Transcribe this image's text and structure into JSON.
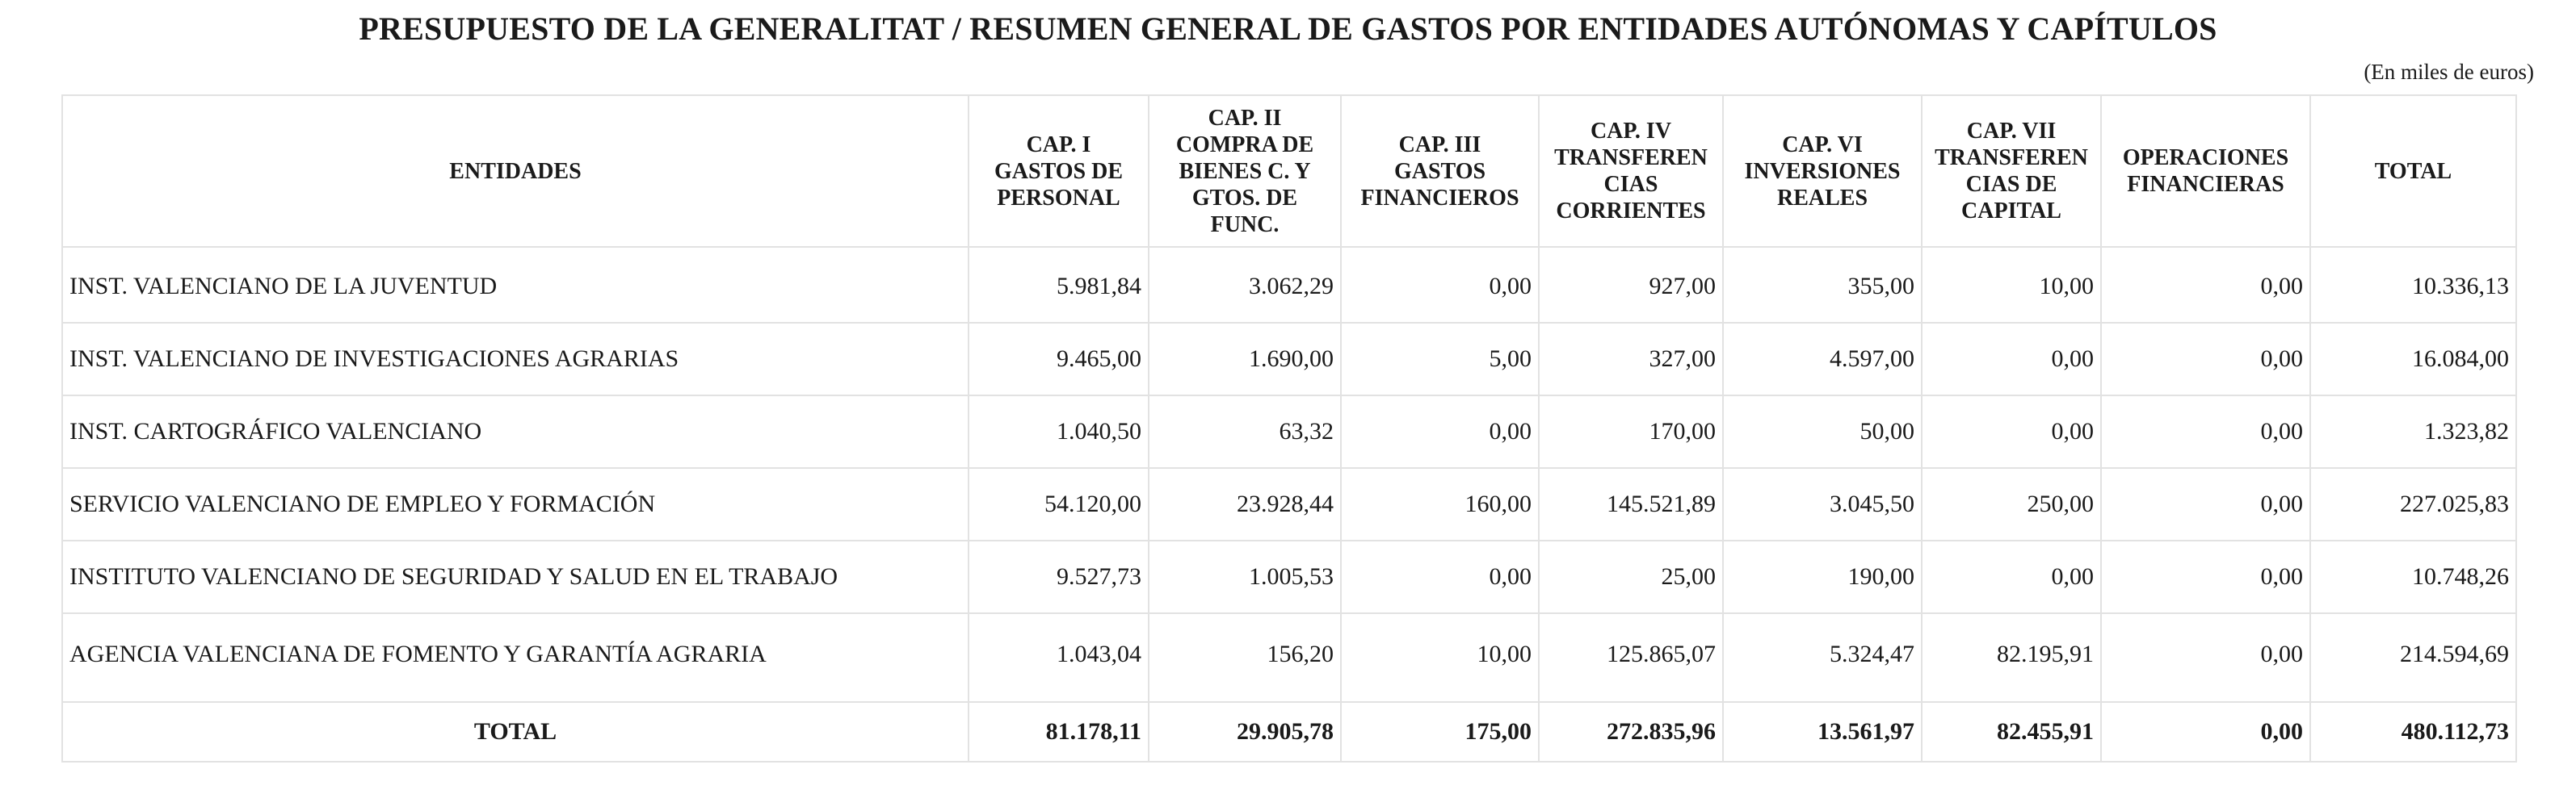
{
  "document": {
    "title": "PRESUPUESTO DE LA GENERALITAT / RESUMEN GENERAL DE GASTOS POR ENTIDADES AUTÓNOMAS Y CAPÍTULOS",
    "units": "(En miles de euros)"
  },
  "table": {
    "headers": {
      "entidades": "ENTIDADES",
      "cap1": [
        "CAP. I",
        "GASTOS DE",
        "PERSONAL"
      ],
      "cap2": [
        "CAP. II",
        "COMPRA DE",
        "BIENES C. Y",
        "GTOS. DE",
        "FUNC."
      ],
      "cap3": [
        "CAP. III",
        "GASTOS",
        "FINANCIEROS"
      ],
      "cap4": [
        "CAP. IV",
        "TRANSFEREN",
        "CIAS",
        "CORRIENTES"
      ],
      "cap6": [
        "CAP. VI",
        "INVERSIONES",
        "REALES"
      ],
      "cap7": [
        "CAP. VII",
        "TRANSFEREN",
        "CIAS DE",
        "CAPITAL"
      ],
      "opfin": [
        "OPERACIONES",
        "FINANCIERAS"
      ],
      "total": "TOTAL"
    },
    "rows": [
      {
        "entidad": "INST. VALENCIANO DE LA JUVENTUD",
        "values": [
          "5.981,84",
          "3.062,29",
          "0,00",
          "927,00",
          "355,00",
          "10,00",
          "0,00",
          "10.336,13"
        ]
      },
      {
        "entidad": "INST. VALENCIANO DE INVESTIGACIONES AGRARIAS",
        "values": [
          "9.465,00",
          "1.690,00",
          "5,00",
          "327,00",
          "4.597,00",
          "0,00",
          "0,00",
          "16.084,00"
        ]
      },
      {
        "entidad": "INST. CARTOGRÁFICO VALENCIANO",
        "values": [
          "1.040,50",
          "63,32",
          "0,00",
          "170,00",
          "50,00",
          "0,00",
          "0,00",
          "1.323,82"
        ]
      },
      {
        "entidad": "SERVICIO VALENCIANO DE EMPLEO Y FORMACIÓN",
        "values": [
          "54.120,00",
          "23.928,44",
          "160,00",
          "145.521,89",
          "3.045,50",
          "250,00",
          "0,00",
          "227.025,83"
        ]
      },
      {
        "entidad": "INSTITUTO VALENCIANO DE SEGURIDAD Y SALUD EN EL TRABAJO",
        "values": [
          "9.527,73",
          "1.005,53",
          "0,00",
          "25,00",
          "190,00",
          "0,00",
          "0,00",
          "10.748,26"
        ]
      },
      {
        "entidad": "AGENCIA VALENCIANA DE FOMENTO Y GARANTÍA AGRARIA",
        "values": [
          "1.043,04",
          "156,20",
          "10,00",
          "125.865,07",
          "5.324,47",
          "82.195,91",
          "0,00",
          "214.594,69"
        ]
      }
    ],
    "totals": {
      "label": "TOTAL",
      "values": [
        "81.178,11",
        "29.905,78",
        "175,00",
        "272.835,96",
        "13.561,97",
        "82.455,91",
        "0,00",
        "480.112,73"
      ]
    }
  },
  "colors": {
    "text": "#1a1a1a",
    "border": "#e2e2e2",
    "background": "#ffffff"
  }
}
